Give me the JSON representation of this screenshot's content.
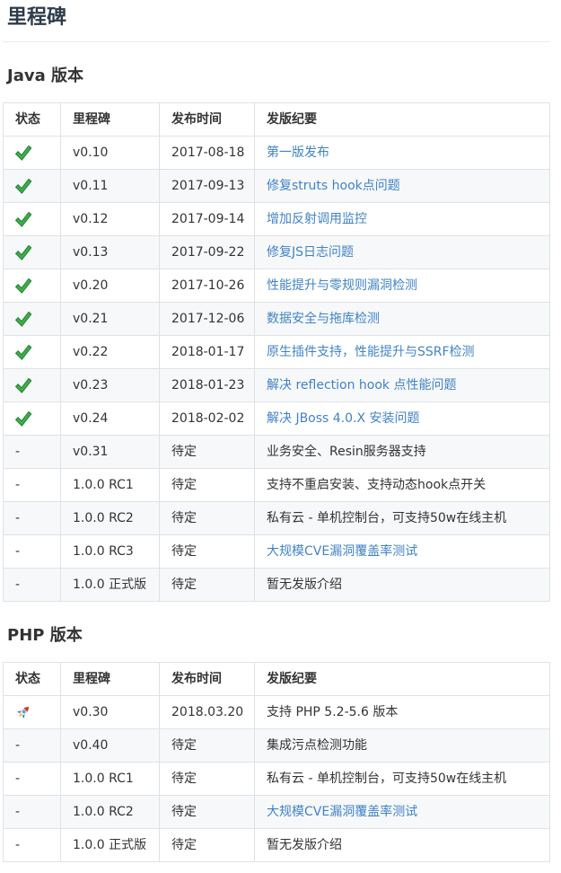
{
  "page": {
    "title": "里程碑"
  },
  "colors": {
    "link": "#4183c4",
    "body_text": "#333333",
    "table_border": "#dfe2e5",
    "alt_row_bg": "#f6f8fa",
    "check_green": "#3fae49",
    "check_green_dark": "#1e7e34"
  },
  "icons": {
    "check": "check-icon",
    "rocket": "rocket-icon"
  },
  "sections": [
    {
      "heading": "Java 版本",
      "columns": [
        "状态",
        "里程碑",
        "发布时间",
        "发版纪要"
      ],
      "rows": [
        {
          "status": "check",
          "milestone": "v0.10",
          "date": "2017-08-18",
          "notes": "第一版发布",
          "link": true
        },
        {
          "status": "check",
          "milestone": "v0.11",
          "date": "2017-09-13",
          "notes": "修复struts hook点问题",
          "link": true
        },
        {
          "status": "check",
          "milestone": "v0.12",
          "date": "2017-09-14",
          "notes": "增加反射调用监控",
          "link": true
        },
        {
          "status": "check",
          "milestone": "v0.13",
          "date": "2017-09-22",
          "notes": "修复JS日志问题",
          "link": true
        },
        {
          "status": "check",
          "milestone": "v0.20",
          "date": "2017-10-26",
          "notes": "性能提升与零规则漏洞检测",
          "link": true
        },
        {
          "status": "check",
          "milestone": "v0.21",
          "date": "2017-12-06",
          "notes": "数据安全与拖库检测",
          "link": true
        },
        {
          "status": "check",
          "milestone": "v0.22",
          "date": "2018-01-17",
          "notes": "原生插件支持，性能提升与SSRF检测",
          "link": true
        },
        {
          "status": "check",
          "milestone": "v0.23",
          "date": "2018-01-23",
          "notes": "解决 reflection hook 点性能问题",
          "link": true
        },
        {
          "status": "check",
          "milestone": "v0.24",
          "date": "2018-02-02",
          "notes": "解决 JBoss 4.0.X 安装问题",
          "link": true
        },
        {
          "status": "-",
          "milestone": "v0.31",
          "date": "待定",
          "notes": "业务安全、Resin服务器支持",
          "link": false
        },
        {
          "status": "-",
          "milestone": "1.0.0 RC1",
          "date": "待定",
          "notes": "支持不重启安装、支持动态hook点开关",
          "link": false
        },
        {
          "status": "-",
          "milestone": "1.0.0 RC2",
          "date": "待定",
          "notes": "私有云 - 单机控制台，可支持50w在线主机",
          "link": false
        },
        {
          "status": "-",
          "milestone": "1.0.0 RC3",
          "date": "待定",
          "notes": "大规模CVE漏洞覆盖率测试",
          "link": true
        },
        {
          "status": "-",
          "milestone": "1.0.0 正式版",
          "date": "待定",
          "notes": "暂无发版介绍",
          "link": false
        }
      ]
    },
    {
      "heading": "PHP 版本",
      "columns": [
        "状态",
        "里程碑",
        "发布时间",
        "发版纪要"
      ],
      "rows": [
        {
          "status": "rocket",
          "milestone": "v0.30",
          "date": "2018.03.20",
          "notes": "支持 PHP 5.2-5.6 版本",
          "link": false
        },
        {
          "status": "-",
          "milestone": "v0.40",
          "date": "待定",
          "notes": "集成污点检测功能",
          "link": false
        },
        {
          "status": "-",
          "milestone": "1.0.0 RC1",
          "date": "待定",
          "notes": "私有云 - 单机控制台，可支持50w在线主机",
          "link": false
        },
        {
          "status": "-",
          "milestone": "1.0.0 RC2",
          "date": "待定",
          "notes": "大规模CVE漏洞覆盖率测试",
          "link": true
        },
        {
          "status": "-",
          "milestone": "1.0.0 正式版",
          "date": "待定",
          "notes": "暂无发版介绍",
          "link": false
        }
      ]
    }
  ]
}
